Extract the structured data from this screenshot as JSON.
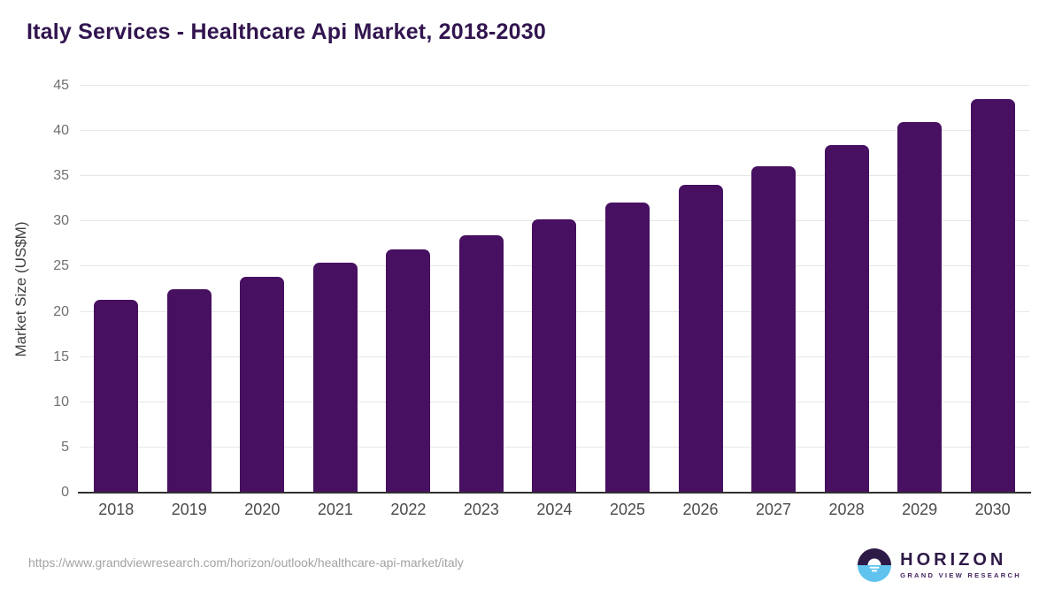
{
  "title": "Italy Services - Healthcare Api Market, 2018-2030",
  "chart_data": {
    "type": "bar",
    "title": "Italy Services - Healthcare Api Market, 2018-2030",
    "categories": [
      "2018",
      "2019",
      "2020",
      "2021",
      "2022",
      "2023",
      "2024",
      "2025",
      "2026",
      "2027",
      "2028",
      "2029",
      "2030"
    ],
    "values": [
      21.3,
      22.5,
      23.9,
      25.4,
      26.9,
      28.5,
      30.2,
      32.1,
      34.0,
      36.1,
      38.4,
      41.0,
      43.5
    ],
    "xlabel": "",
    "ylabel": "Market Size (US$M)",
    "ylim": [
      0,
      45
    ],
    "ytick_step": 5,
    "yticks": [
      0,
      5,
      10,
      15,
      20,
      25,
      30,
      35,
      40,
      45
    ],
    "grid": true,
    "legend": "none",
    "bar_color": "#471061"
  },
  "footer": {
    "source_url": "https://www.grandviewresearch.com/horizon/outlook/healthcare-api-market/italy",
    "logo": {
      "brand": "HORIZON",
      "subtitle": "GRAND VIEW RESEARCH",
      "icon": "horizon-sun-icon",
      "icon_purple": "#2e1a47",
      "icon_blue": "#5fc3ed"
    }
  },
  "colors": {
    "title_text": "#32154f",
    "bar": "#471061",
    "gridline": "#e7e7e7",
    "axis_line": "#303030",
    "y_tick_text": "#707070",
    "x_tick_text": "#4a4a4a",
    "url_text": "#a3a3a3",
    "background": "#ffffff"
  }
}
